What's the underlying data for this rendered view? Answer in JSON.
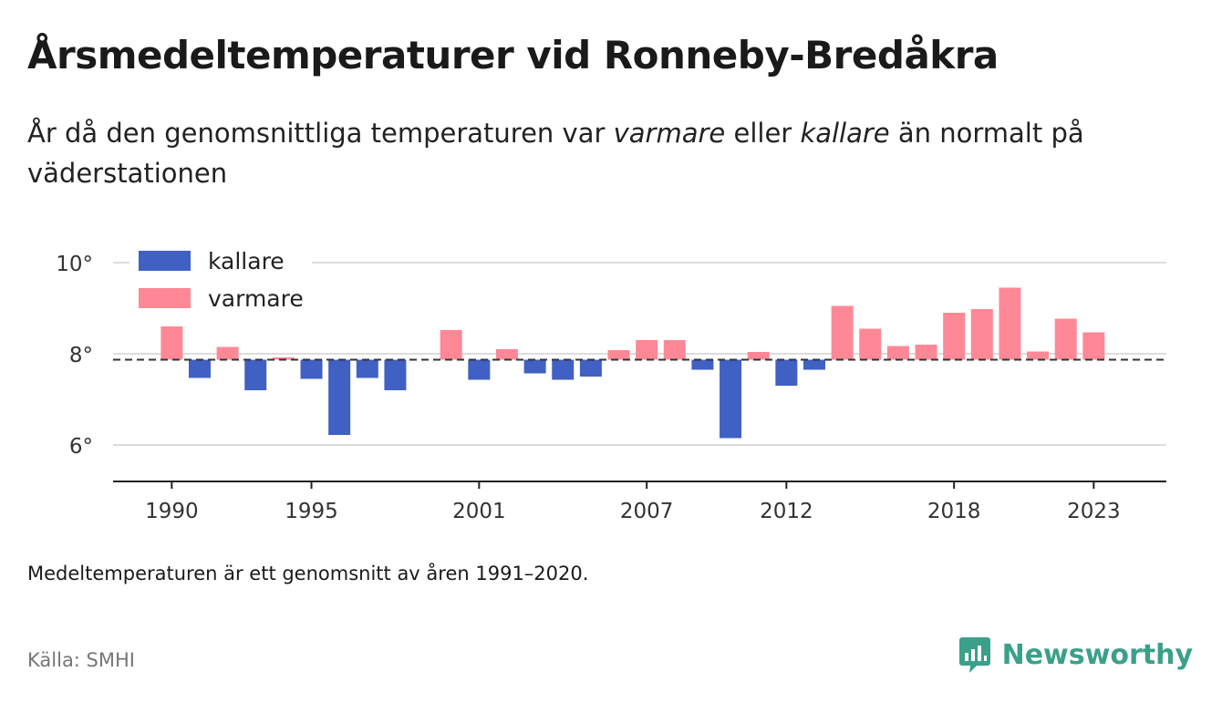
{
  "header": {
    "title": "Årsmedeltemperaturer vid Ronneby-Bredåkra",
    "subtitle_part1": "År då den genomsnittliga temperaturen var ",
    "subtitle_warm": "varmare",
    "subtitle_part2": " eller ",
    "subtitle_cold": "kallare",
    "subtitle_part3": " än normalt på väderstationen"
  },
  "footer": {
    "note": "Medeltemperaturen är ett genomsnitt av åren 1991–2020.",
    "source": "Källa: SMHI",
    "brand": "Newsworthy"
  },
  "colors": {
    "cold": "#4060c3",
    "warm": "#ff8896",
    "brand": "#3aa08a"
  },
  "chart_data": {
    "type": "bar",
    "baseline": 7.87,
    "ylim": [
      5.2,
      10.4
    ],
    "xlim": [
      1987.9,
      2025.6
    ],
    "yticks": [
      6,
      8,
      10
    ],
    "ytick_labels": [
      "6°",
      "8°",
      "10°"
    ],
    "xticks": [
      1990,
      1995,
      2001,
      2007,
      2012,
      2018,
      2023
    ],
    "xtick_labels": [
      "1990",
      "1995",
      "2001",
      "2007",
      "2012",
      "2018",
      "2023"
    ],
    "legend": {
      "position": "top-left",
      "items": [
        {
          "label": "kallare",
          "color": "#4060c3"
        },
        {
          "label": "varmare",
          "color": "#ff8896"
        }
      ]
    },
    "grid": true,
    "baseline_style": "dashed",
    "years": [
      1990,
      1991,
      1992,
      1993,
      1994,
      1995,
      1996,
      1997,
      1998,
      2000,
      2001,
      2002,
      2003,
      2004,
      2005,
      2006,
      2007,
      2008,
      2009,
      2010,
      2011,
      2012,
      2013,
      2014,
      2015,
      2016,
      2017,
      2018,
      2019,
      2020,
      2021,
      2022,
      2023
    ],
    "values": [
      8.6,
      7.47,
      8.15,
      7.2,
      7.92,
      7.45,
      6.22,
      7.47,
      7.2,
      8.52,
      7.43,
      8.1,
      7.57,
      7.43,
      7.5,
      8.08,
      8.3,
      8.3,
      7.65,
      6.15,
      8.04,
      7.3,
      7.65,
      9.05,
      8.55,
      8.17,
      8.2,
      8.9,
      8.98,
      9.45,
      8.05,
      8.77,
      8.47
    ]
  }
}
